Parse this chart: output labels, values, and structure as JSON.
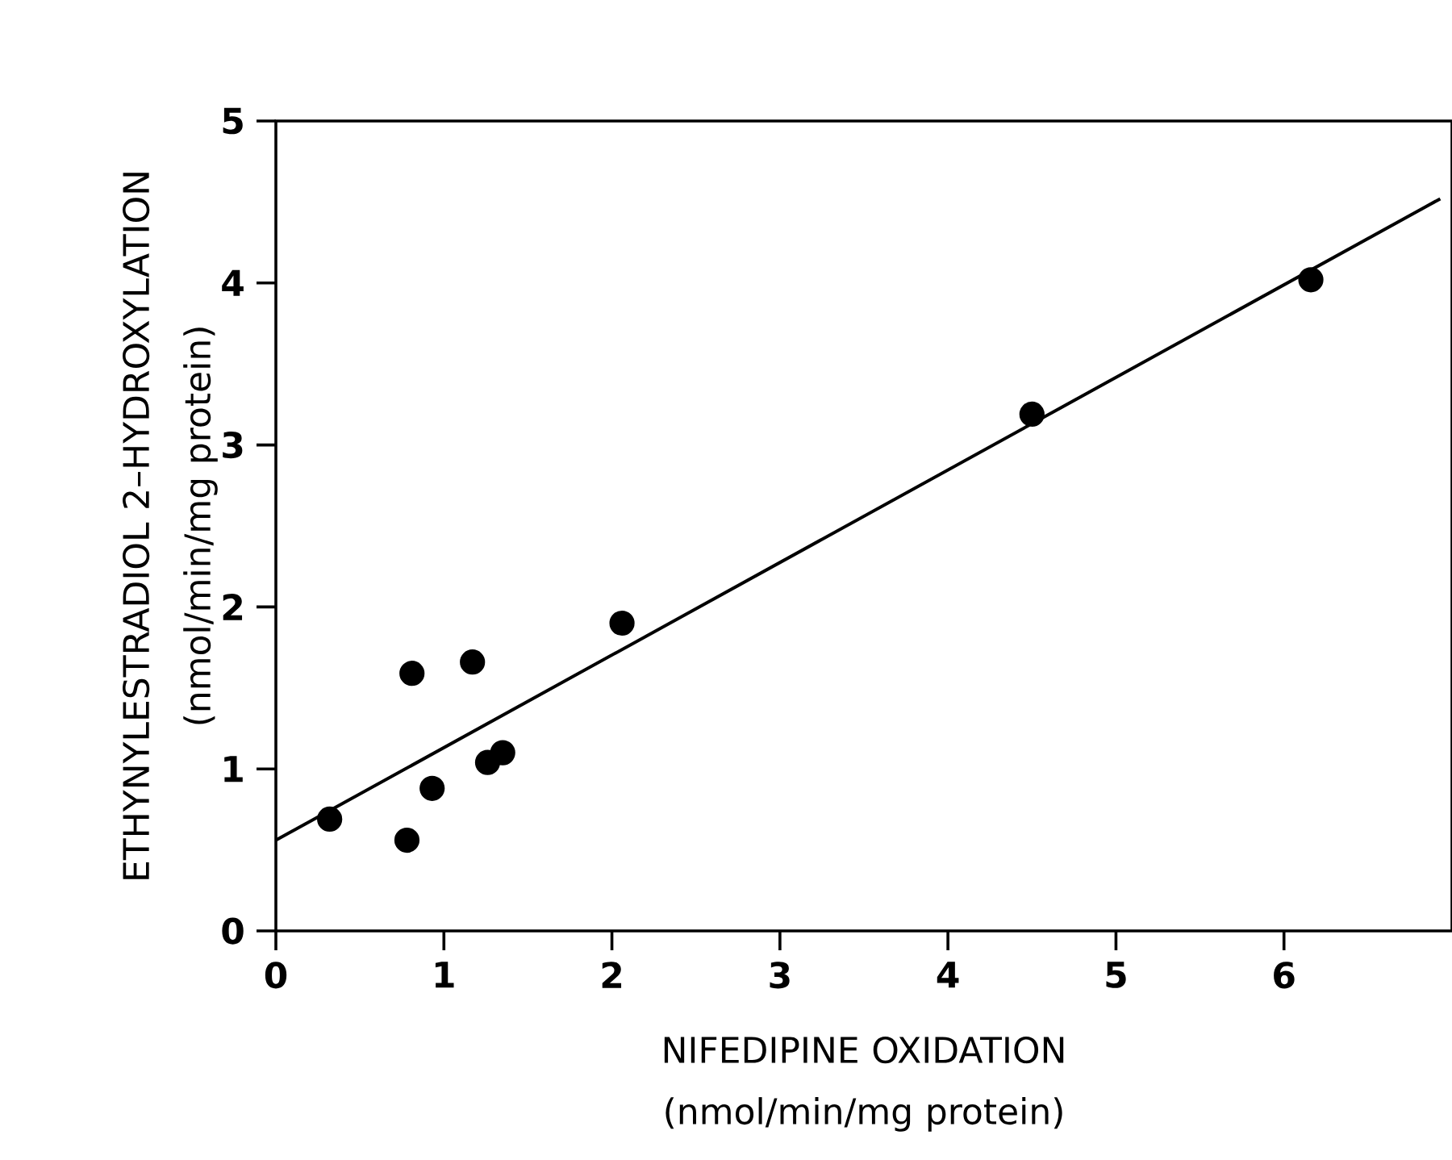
{
  "chart_data": {
    "type": "scatter",
    "xlabel": "NIFEDIPINE OXIDATION (nmol/min/mg protein)",
    "ylabel": "ETHYNYLESTRADIOL 2–HYDROXYLATION (nmol/min/mg protein)",
    "xlim": [
      0,
      7
    ],
    "ylim": [
      0,
      5
    ],
    "xticks": [
      0,
      1,
      2,
      3,
      4,
      5,
      6
    ],
    "yticks": [
      0,
      1,
      2,
      3,
      4,
      5
    ],
    "series": [
      {
        "color": "#000000",
        "marker": "circle",
        "x": [
          0.32,
          0.78,
          0.81,
          0.93,
          1.17,
          1.26,
          1.35,
          2.06,
          4.5,
          6.16
        ],
        "values": [
          0.69,
          0.56,
          1.59,
          0.88,
          1.66,
          1.04,
          1.1,
          1.9,
          3.19,
          4.02
        ]
      },
      {
        "type": "line",
        "color": "#000000",
        "marker": "none",
        "line_style": "solid",
        "x": [
          0,
          6.93
        ],
        "values": [
          0.56,
          4.52
        ]
      }
    ]
  }
}
